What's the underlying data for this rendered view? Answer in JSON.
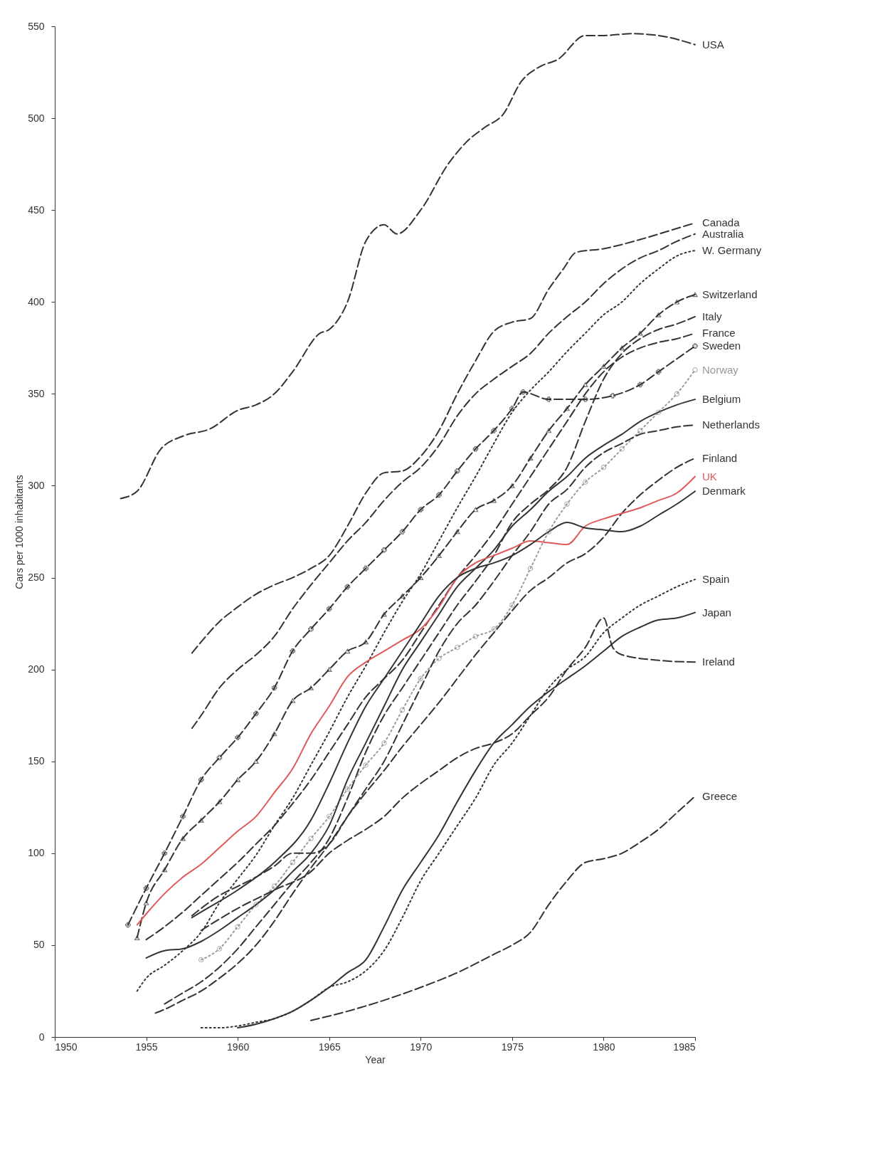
{
  "chart_data": {
    "type": "line",
    "xlabel": "Year",
    "ylabel": "Cars per 1000 inhabitants",
    "xlim": [
      1950,
      1985
    ],
    "xticks": [
      1950,
      1955,
      1960,
      1965,
      1970,
      1975,
      1980,
      1985
    ],
    "ylim": [
      0,
      550
    ],
    "yticks": [
      0,
      50,
      100,
      150,
      200,
      250,
      300,
      350,
      400,
      450,
      500,
      550
    ],
    "grid": false,
    "legend": false,
    "series": [
      {
        "name": "USA",
        "color": "#333333",
        "line_style": "dashed",
        "x": [
          1953.6,
          1954.5,
          1955.8,
          1957,
          1958.5,
          1960,
          1961,
          1962,
          1963,
          1964.5,
          1965,
          1966,
          1967,
          1968,
          1968.7,
          1970,
          1971.5,
          1972.5,
          1973.5,
          1974.5,
          1975.5,
          1976.5,
          1977.5,
          1979,
          1980,
          1981.5,
          1983,
          1985
        ],
        "values": [
          293,
          297,
          320,
          327,
          331,
          341,
          344,
          350,
          362,
          383,
          385,
          400,
          433,
          442,
          437,
          450,
          475,
          487,
          495,
          502,
          520,
          528,
          532,
          545,
          545,
          546,
          545,
          540
        ]
      },
      {
        "name": "Canada",
        "color": "#333333",
        "line_style": "dashed",
        "x": [
          1957.5,
          1958,
          1959,
          1960,
          1961,
          1962,
          1963,
          1964,
          1965,
          1966,
          1967,
          1968,
          1969,
          1970,
          1971,
          1972,
          1973,
          1974,
          1975,
          1976,
          1977,
          1977.8,
          1978.5,
          1980,
          1982,
          1984,
          1985
        ],
        "values": [
          209,
          215,
          226,
          234,
          241,
          246,
          250,
          255,
          262,
          278,
          296,
          307,
          308,
          316,
          330,
          350,
          368,
          384,
          389,
          391,
          407,
          418,
          427,
          429,
          434,
          440,
          443
        ]
      },
      {
        "name": "Australia",
        "color": "#333333",
        "line_style": "dashed",
        "x": [
          1957.5,
          1958,
          1959,
          1960,
          1961,
          1962,
          1963,
          1964,
          1965,
          1966,
          1967,
          1968,
          1969,
          1970,
          1971,
          1972,
          1973,
          1974,
          1975,
          1976,
          1977,
          1978,
          1979,
          1980,
          1981,
          1982,
          1983,
          1984,
          1985
        ],
        "values": [
          168,
          175,
          190,
          200,
          208,
          218,
          233,
          246,
          258,
          270,
          280,
          292,
          302,
          310,
          322,
          338,
          350,
          358,
          365,
          372,
          383,
          392,
          400,
          410,
          418,
          424,
          428,
          433,
          437
        ]
      },
      {
        "name": "W. Germany",
        "color": "#333333",
        "line_style": "dotted",
        "x": [
          1954.5,
          1955,
          1956,
          1957,
          1958,
          1959,
          1960,
          1961,
          1962,
          1963,
          1964,
          1965,
          1966,
          1967,
          1968,
          1969,
          1970,
          1971,
          1972,
          1973,
          1974,
          1975,
          1976,
          1977,
          1978,
          1979,
          1980,
          1981,
          1982,
          1983,
          1984,
          1985
        ],
        "values": [
          25,
          32,
          39,
          47,
          57,
          73,
          86,
          99,
          115,
          130,
          148,
          166,
          185,
          202,
          220,
          237,
          252,
          270,
          288,
          305,
          323,
          340,
          352,
          362,
          373,
          383,
          393,
          400,
          410,
          418,
          425,
          428
        ]
      },
      {
        "name": "Switzerland",
        "color": "#333333",
        "line_style": "dashed",
        "marker": "triangle",
        "x": [
          1954.5,
          1955,
          1956,
          1957,
          1958,
          1959,
          1960,
          1961,
          1962,
          1963,
          1964,
          1965,
          1966,
          1967,
          1968,
          1969,
          1970,
          1971,
          1972,
          1973,
          1974,
          1975,
          1976,
          1977,
          1978,
          1979,
          1980,
          1981,
          1982,
          1983,
          1984,
          1985
        ],
        "values": [
          54,
          73,
          91,
          108,
          118,
          128,
          140,
          150,
          165,
          183,
          190,
          200,
          210,
          215,
          230,
          240,
          250,
          262,
          275,
          287,
          292,
          300,
          315,
          330,
          342,
          355,
          365,
          375,
          383,
          393,
          400,
          404
        ]
      },
      {
        "name": "Italy",
        "color": "#333333",
        "line_style": "dashed",
        "x": [
          1956,
          1957,
          1958,
          1959,
          1960,
          1961,
          1962,
          1963,
          1964,
          1965,
          1966,
          1967,
          1968,
          1969,
          1970,
          1971,
          1972,
          1973,
          1974,
          1975,
          1976,
          1977,
          1978,
          1979,
          1980,
          1981,
          1982,
          1983,
          1984,
          1985
        ],
        "values": [
          18,
          24,
          30,
          38,
          48,
          60,
          72,
          84,
          95,
          108,
          130,
          155,
          175,
          190,
          205,
          220,
          235,
          248,
          262,
          280,
          290,
          298,
          310,
          335,
          358,
          372,
          380,
          385,
          388,
          392
        ]
      },
      {
        "name": "France",
        "color": "#333333",
        "line_style": "dashed",
        "x": [
          1955,
          1956,
          1957,
          1958,
          1959,
          1960,
          1961,
          1962,
          1963,
          1964,
          1965,
          1966,
          1967,
          1968,
          1969,
          1970,
          1971,
          1972,
          1973,
          1974,
          1975,
          1976,
          1977,
          1978,
          1979,
          1980,
          1981,
          1982,
          1983,
          1984,
          1985
        ],
        "values": [
          53,
          60,
          68,
          77,
          86,
          95,
          105,
          115,
          127,
          140,
          155,
          170,
          185,
          195,
          205,
          220,
          235,
          250,
          262,
          275,
          290,
          305,
          320,
          335,
          350,
          362,
          370,
          375,
          378,
          380,
          383
        ]
      },
      {
        "name": "Sweden",
        "color": "#333333",
        "line_style": "dashed",
        "marker": "cross",
        "x": [
          1954,
          1955,
          1956,
          1957,
          1958,
          1959,
          1960,
          1961,
          1962,
          1963,
          1964,
          1965,
          1966,
          1967,
          1968,
          1969,
          1970,
          1971,
          1972,
          1973,
          1974,
          1975,
          1975.6,
          1977,
          1979,
          1980.5,
          1982,
          1983,
          1985
        ],
        "values": [
          61,
          81,
          100,
          120,
          140,
          152,
          163,
          176,
          190,
          210,
          222,
          233,
          245,
          255,
          265,
          275,
          287,
          295,
          308,
          320,
          330,
          342,
          351,
          347,
          347,
          349,
          355,
          362,
          376
        ]
      },
      {
        "name": "Norway",
        "color": "#999999",
        "line_style": "dotted",
        "marker": "circle",
        "x": [
          1958,
          1959,
          1960,
          1961,
          1962,
          1963,
          1964,
          1965,
          1966,
          1967,
          1968,
          1969,
          1970,
          1971,
          1972,
          1973,
          1974,
          1975,
          1976,
          1977,
          1978,
          1979,
          1980,
          1981,
          1982,
          1983,
          1984,
          1985
        ],
        "values": [
          42,
          48,
          60,
          72,
          82,
          95,
          108,
          120,
          135,
          148,
          160,
          178,
          195,
          206,
          212,
          218,
          222,
          235,
          255,
          275,
          290,
          302,
          310,
          320,
          330,
          340,
          350,
          363
        ]
      },
      {
        "name": "Belgium",
        "color": "#333333",
        "line_style": "solid",
        "x": [
          1955,
          1956,
          1957,
          1958,
          1959,
          1960,
          1961,
          1962,
          1963,
          1964,
          1965,
          1966,
          1967,
          1968,
          1969,
          1970,
          1971,
          1972,
          1973,
          1974,
          1975,
          1976,
          1977,
          1978,
          1979,
          1980,
          1981,
          1982,
          1983,
          1984,
          1985
        ],
        "values": [
          43,
          47,
          48,
          52,
          58,
          65,
          72,
          80,
          90,
          100,
          115,
          140,
          160,
          180,
          200,
          215,
          230,
          245,
          255,
          265,
          278,
          287,
          297,
          305,
          315,
          322,
          328,
          335,
          340,
          344,
          347
        ]
      },
      {
        "name": "Netherlands",
        "color": "#333333",
        "line_style": "dashed",
        "x": [
          1957.5,
          1958,
          1959,
          1960,
          1961,
          1962,
          1963,
          1964,
          1965,
          1966,
          1967,
          1968,
          1969,
          1970,
          1971,
          1972,
          1973,
          1974,
          1975,
          1976,
          1977,
          1978,
          1979,
          1980,
          1981,
          1982,
          1983,
          1984,
          1985
        ],
        "values": [
          66,
          70,
          77,
          82,
          87,
          93,
          100,
          100,
          105,
          120,
          135,
          150,
          170,
          190,
          210,
          225,
          235,
          248,
          262,
          275,
          290,
          298,
          310,
          318,
          323,
          328,
          330,
          332,
          333
        ]
      },
      {
        "name": "Finland",
        "color": "#333333",
        "line_style": "dashed",
        "x": [
          1955.5,
          1956,
          1957,
          1958,
          1959,
          1960,
          1961,
          1962,
          1963,
          1964,
          1965,
          1966,
          1967,
          1968,
          1969,
          1970,
          1971,
          1972,
          1973,
          1974,
          1975,
          1976,
          1977,
          1978,
          1979,
          1980,
          1981,
          1982,
          1983,
          1984,
          1985
        ],
        "values": [
          13,
          15,
          20,
          25,
          32,
          40,
          50,
          63,
          78,
          92,
          105,
          120,
          133,
          145,
          158,
          170,
          182,
          195,
          208,
          220,
          232,
          243,
          250,
          258,
          263,
          272,
          285,
          295,
          303,
          310,
          315
        ]
      },
      {
        "name": "UK",
        "color": "#e05a5a",
        "line_style": "solid",
        "x": [
          1954.5,
          1955,
          1956,
          1957,
          1958,
          1959,
          1960,
          1961,
          1962,
          1963,
          1964,
          1965,
          1966,
          1967,
          1968,
          1969,
          1970,
          1971,
          1972,
          1973,
          1974,
          1975,
          1976,
          1977,
          1978,
          1979,
          1980,
          1981,
          1982,
          1983,
          1984,
          1985
        ],
        "values": [
          61,
          67,
          78,
          87,
          94,
          103,
          112,
          120,
          133,
          146,
          165,
          180,
          196,
          204,
          210,
          216,
          222,
          234,
          250,
          258,
          262,
          266,
          270,
          269,
          268,
          278,
          282,
          285,
          288,
          292,
          296,
          305
        ]
      },
      {
        "name": "Denmark",
        "color": "#333333",
        "line_style": "solid",
        "x": [
          1957.5,
          1958,
          1960,
          1962,
          1964,
          1965,
          1966,
          1967,
          1968,
          1969,
          1970,
          1971,
          1972,
          1973,
          1974,
          1975,
          1976,
          1977,
          1978,
          1979,
          1980,
          1981,
          1982,
          1983,
          1984,
          1985
        ],
        "values": [
          65,
          68,
          80,
          95,
          118,
          138,
          160,
          180,
          195,
          210,
          225,
          240,
          250,
          255,
          258,
          262,
          268,
          275,
          280,
          277,
          276,
          275,
          278,
          284,
          290,
          297
        ]
      },
      {
        "name": "Spain",
        "color": "#333333",
        "line_style": "dotted",
        "x": [
          1958,
          1959,
          1960,
          1961,
          1962,
          1963,
          1964,
          1965,
          1966,
          1967,
          1968,
          1969,
          1970,
          1971,
          1972,
          1973,
          1974,
          1975,
          1976,
          1977,
          1978,
          1979,
          1980,
          1981,
          1982,
          1983,
          1984,
          1985
        ],
        "values": [
          5,
          5,
          6,
          8,
          10,
          14,
          20,
          27,
          30,
          36,
          47,
          65,
          85,
          100,
          115,
          130,
          148,
          160,
          175,
          190,
          200,
          207,
          220,
          228,
          235,
          240,
          245,
          249
        ]
      },
      {
        "name": "Japan",
        "color": "#333333",
        "line_style": "solid",
        "x": [
          1960,
          1961,
          1962,
          1963,
          1964,
          1965,
          1966,
          1967,
          1968,
          1969,
          1970,
          1971,
          1972,
          1973,
          1974,
          1975,
          1976,
          1977,
          1978,
          1979,
          1980,
          1981,
          1982,
          1983,
          1984,
          1985
        ],
        "values": [
          5,
          7,
          10,
          14,
          20,
          27,
          35,
          42,
          60,
          80,
          95,
          110,
          128,
          145,
          160,
          170,
          180,
          188,
          195,
          202,
          210,
          218,
          223,
          227,
          228,
          231
        ]
      },
      {
        "name": "Ireland",
        "color": "#333333",
        "line_style": "dashed",
        "x": [
          1958,
          1960,
          1962,
          1964,
          1965,
          1966,
          1967,
          1968,
          1969,
          1970,
          1971,
          1972,
          1973,
          1974,
          1975,
          1976,
          1977,
          1978,
          1979,
          1980,
          1980.5,
          1981,
          1983,
          1985
        ],
        "values": [
          58,
          70,
          80,
          90,
          100,
          107,
          113,
          120,
          130,
          138,
          145,
          152,
          157,
          160,
          165,
          175,
          185,
          200,
          212,
          228,
          212,
          208,
          205,
          204
        ]
      },
      {
        "name": "Greece",
        "color": "#333333",
        "line_style": "dashed",
        "x": [
          1964,
          1966,
          1968,
          1970,
          1972,
          1974,
          1975,
          1976,
          1977,
          1978,
          1979,
          1980,
          1981,
          1982,
          1983,
          1984,
          1985
        ],
        "values": [
          9,
          14,
          20,
          27,
          35,
          45,
          50,
          57,
          72,
          85,
          95,
          97,
          100,
          106,
          113,
          122,
          131
        ]
      }
    ]
  }
}
